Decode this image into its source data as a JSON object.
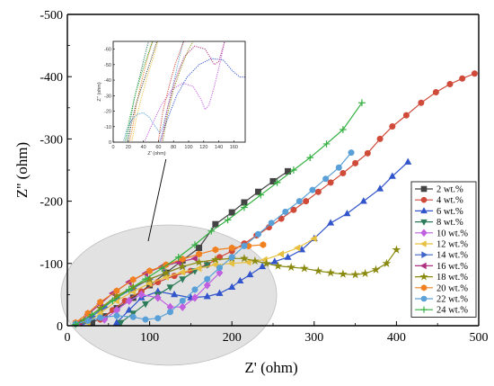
{
  "chart_data": {
    "type": "scatter",
    "xlabel": "Z' (ohm)",
    "ylabel": "Z'' (ohm)",
    "xlim": [
      0,
      500
    ],
    "ylim": [
      0,
      -500
    ],
    "xticks": [
      "0",
      "100",
      "200",
      "300",
      "400",
      "500"
    ],
    "yticks": [
      "0",
      "-100",
      "-200",
      "-300",
      "-400",
      "-500"
    ],
    "grid": false,
    "legend_position": "right",
    "series": [
      {
        "name": "2 wt.%",
        "color": "#444444",
        "marker": "square",
        "points": [
          [
            30,
            -5
          ],
          [
            45,
            -15
          ],
          [
            60,
            -28
          ],
          [
            80,
            -45
          ],
          [
            100,
            -65
          ],
          [
            120,
            -85
          ],
          [
            140,
            -105
          ],
          [
            160,
            -125
          ],
          [
            180,
            -163
          ],
          [
            200,
            -182
          ],
          [
            215,
            -198
          ],
          [
            232,
            -215
          ],
          [
            250,
            -232
          ],
          [
            268,
            -248
          ]
        ]
      },
      {
        "name": "4 wt.%",
        "color": "#d04a3a",
        "marker": "circle",
        "points": [
          [
            40,
            -10
          ],
          [
            55,
            -25
          ],
          [
            70,
            -40
          ],
          [
            90,
            -55
          ],
          [
            110,
            -70
          ],
          [
            130,
            -80
          ],
          [
            150,
            -88
          ],
          [
            170,
            -98
          ],
          [
            185,
            -110
          ],
          [
            200,
            -120
          ],
          [
            215,
            -132
          ],
          [
            230,
            -145
          ],
          [
            245,
            -158
          ],
          [
            260,
            -172
          ],
          [
            275,
            -186
          ],
          [
            290,
            -200
          ],
          [
            305,
            -215
          ],
          [
            320,
            -230
          ],
          [
            335,
            -245
          ],
          [
            350,
            -261
          ],
          [
            365,
            -277
          ],
          [
            380,
            -300
          ],
          [
            395,
            -320
          ],
          [
            412,
            -338
          ],
          [
            430,
            -358
          ],
          [
            448,
            -375
          ],
          [
            465,
            -388
          ],
          [
            480,
            -397
          ],
          [
            495,
            -405
          ]
        ]
      },
      {
        "name": "6 wt.%",
        "color": "#3355cc",
        "marker": "triangle",
        "points": [
          [
            60,
            -5
          ],
          [
            75,
            -25
          ],
          [
            90,
            -45
          ],
          [
            110,
            -55
          ],
          [
            130,
            -50
          ],
          [
            150,
            -45
          ],
          [
            170,
            -47
          ],
          [
            185,
            -52
          ],
          [
            200,
            -62
          ],
          [
            210,
            -72
          ],
          [
            222,
            -82
          ],
          [
            237,
            -95
          ],
          [
            252,
            -103
          ],
          [
            268,
            -110
          ],
          [
            285,
            -122
          ],
          [
            300,
            -140
          ],
          [
            320,
            -165
          ],
          [
            340,
            -180
          ],
          [
            360,
            -200
          ],
          [
            380,
            -220
          ],
          [
            395,
            -240
          ],
          [
            414,
            -263
          ]
        ]
      },
      {
        "name": "8 wt.%",
        "color": "#2e7d5a",
        "marker": "triangle-down",
        "points": [
          [
            65,
            -5
          ],
          [
            80,
            -20
          ],
          [
            95,
            -35
          ],
          [
            110,
            -50
          ],
          [
            125,
            -62
          ],
          [
            140,
            -75
          ],
          [
            155,
            -88
          ],
          [
            170,
            -98
          ]
        ]
      },
      {
        "name": "10 wt.%",
        "color": "#c060e0",
        "marker": "diamond",
        "points": [
          [
            45,
            -10
          ],
          [
            60,
            -25
          ],
          [
            75,
            -40
          ],
          [
            90,
            -50
          ],
          [
            110,
            -45
          ],
          [
            125,
            -30
          ],
          [
            140,
            -30
          ],
          [
            155,
            -45
          ],
          [
            170,
            -65
          ],
          [
            185,
            -85
          ]
        ]
      },
      {
        "name": "12 wt.%",
        "color": "#e8c040",
        "marker": "triangle-left",
        "points": [
          [
            25,
            -5
          ],
          [
            40,
            -20
          ],
          [
            60,
            -40
          ],
          [
            80,
            -55
          ],
          [
            100,
            -68
          ],
          [
            120,
            -78
          ],
          [
            140,
            -86
          ],
          [
            160,
            -92
          ],
          [
            180,
            -98
          ],
          [
            200,
            -100
          ],
          [
            220,
            -102
          ],
          [
            240,
            -106
          ],
          [
            260,
            -115
          ],
          [
            280,
            -125
          ],
          [
            300,
            -140
          ]
        ]
      },
      {
        "name": "14 wt.%",
        "color": "#3f66c8",
        "marker": "triangle-right",
        "points": [
          [
            20,
            -5
          ],
          [
            30,
            -15
          ],
          [
            45,
            -30
          ],
          [
            60,
            -45
          ],
          [
            80,
            -60
          ],
          [
            100,
            -75
          ],
          [
            120,
            -85
          ],
          [
            140,
            -95
          ]
        ]
      },
      {
        "name": "16 wt.%",
        "color": "#b03080",
        "marker": "triangle-left",
        "points": [
          [
            15,
            -5
          ],
          [
            25,
            -18
          ],
          [
            40,
            -35
          ],
          [
            55,
            -52
          ],
          [
            75,
            -70
          ],
          [
            95,
            -84
          ],
          [
            115,
            -95
          ],
          [
            135,
            -102
          ],
          [
            155,
            -108
          ]
        ]
      },
      {
        "name": "18 wt.%",
        "color": "#8a8a10",
        "marker": "star",
        "points": [
          [
            20,
            -8
          ],
          [
            40,
            -28
          ],
          [
            60,
            -48
          ],
          [
            80,
            -62
          ],
          [
            100,
            -75
          ],
          [
            120,
            -85
          ],
          [
            140,
            -95
          ],
          [
            160,
            -102
          ],
          [
            180,
            -106
          ],
          [
            200,
            -108
          ],
          [
            215,
            -108
          ],
          [
            228,
            -104
          ],
          [
            242,
            -100
          ],
          [
            256,
            -96
          ],
          [
            272,
            -94
          ],
          [
            288,
            -92
          ],
          [
            305,
            -88
          ],
          [
            320,
            -85
          ],
          [
            335,
            -83
          ],
          [
            350,
            -82
          ],
          [
            362,
            -84
          ],
          [
            375,
            -90
          ],
          [
            388,
            -100
          ],
          [
            400,
            -122
          ]
        ]
      },
      {
        "name": "20 wt.%",
        "color": "#f08020",
        "marker": "hexagon",
        "points": [
          [
            10,
            -5
          ],
          [
            25,
            -20
          ],
          [
            40,
            -38
          ],
          [
            60,
            -56
          ],
          [
            80,
            -74
          ],
          [
            100,
            -88
          ],
          [
            120,
            -98
          ],
          [
            140,
            -107
          ],
          [
            160,
            -115
          ],
          [
            180,
            -122
          ],
          [
            200,
            -125
          ],
          [
            220,
            -128
          ],
          [
            238,
            -130
          ]
        ]
      },
      {
        "name": "22 wt.%",
        "color": "#5aa0d8",
        "marker": "circle",
        "points": [
          [
            10,
            -3
          ],
          [
            25,
            -8
          ],
          [
            40,
            -13
          ],
          [
            60,
            -16
          ],
          [
            80,
            -14
          ],
          [
            95,
            -10
          ],
          [
            110,
            -12
          ],
          [
            125,
            -22
          ],
          [
            140,
            -40
          ],
          [
            155,
            -58
          ],
          [
            170,
            -75
          ],
          [
            185,
            -93
          ],
          [
            200,
            -110
          ],
          [
            215,
            -128
          ],
          [
            232,
            -147
          ],
          [
            248,
            -165
          ],
          [
            265,
            -183
          ],
          [
            282,
            -200
          ],
          [
            298,
            -218
          ],
          [
            314,
            -236
          ],
          [
            330,
            -254
          ],
          [
            345,
            -278
          ]
        ]
      },
      {
        "name": "24 wt.%",
        "color": "#33b040",
        "marker": "plus",
        "points": [
          [
            10,
            -2
          ],
          [
            30,
            -18
          ],
          [
            55,
            -40
          ],
          [
            75,
            -58
          ],
          [
            95,
            -75
          ],
          [
            115,
            -92
          ],
          [
            135,
            -110
          ],
          [
            155,
            -130
          ],
          [
            175,
            -152
          ],
          [
            195,
            -170
          ],
          [
            215,
            -190
          ],
          [
            235,
            -210
          ],
          [
            255,
            -230
          ],
          [
            275,
            -250
          ],
          [
            295,
            -270
          ],
          [
            315,
            -292
          ],
          [
            335,
            -315
          ],
          [
            358,
            -358
          ]
        ]
      }
    ],
    "inset": {
      "xlabel": "Z' (ohm)",
      "ylabel": "Z'' (ohm)",
      "xticks": [
        "0",
        "20",
        "40",
        "60",
        "80",
        "100",
        "120",
        "140",
        "160"
      ],
      "yticks": [
        "0",
        "-10",
        "-20",
        "-30",
        "-40",
        "-50",
        "-60"
      ],
      "xlim": [
        0,
        175
      ],
      "ylim": [
        0,
        -65
      ]
    }
  }
}
